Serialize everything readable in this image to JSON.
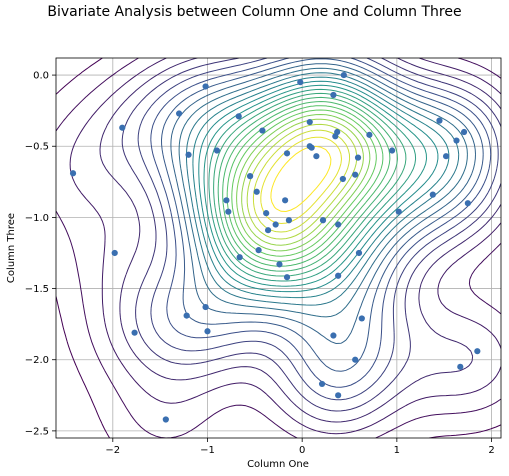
{
  "chart_data": {
    "type": "scatter",
    "title": "Bivariate Analysis between Column One and Column Three",
    "xlabel": "Column One",
    "ylabel": "Column Three",
    "xlim": [
      -2.6,
      2.1
    ],
    "ylim": [
      -2.55,
      0.12
    ],
    "grid": true,
    "overlay": "kde-contour",
    "x_ticks": [
      -2,
      -1,
      0,
      1,
      2
    ],
    "y_ticks": [
      0.0,
      -0.5,
      -1.0,
      -1.5,
      -2.0,
      -2.5
    ],
    "x_tick_labels": [
      "−2",
      "−1",
      "0",
      "1",
      "2"
    ],
    "y_tick_labels": [
      "0.0",
      "−0.5",
      "−1.0",
      "−1.5",
      "−2.0",
      "−2.5"
    ],
    "point_color": "#3a6fb0",
    "contour_colormap": [
      "#440154",
      "#3b528b",
      "#21918c",
      "#5ec962",
      "#fde725"
    ],
    "points": [
      {
        "x": -2.42,
        "y": -0.69
      },
      {
        "x": -1.98,
        "y": -1.25
      },
      {
        "x": -1.9,
        "y": -0.37
      },
      {
        "x": -1.77,
        "y": -1.81
      },
      {
        "x": -1.44,
        "y": -2.42
      },
      {
        "x": -1.3,
        "y": -0.27
      },
      {
        "x": -1.22,
        "y": -1.69
      },
      {
        "x": -1.2,
        "y": -0.56
      },
      {
        "x": -1.02,
        "y": -0.08
      },
      {
        "x": -1.02,
        "y": -1.63
      },
      {
        "x": -1.0,
        "y": -1.8
      },
      {
        "x": -0.9,
        "y": -0.53
      },
      {
        "x": -0.8,
        "y": -0.88
      },
      {
        "x": -0.78,
        "y": -0.96
      },
      {
        "x": -0.67,
        "y": -0.29
      },
      {
        "x": -0.66,
        "y": -1.28
      },
      {
        "x": -0.55,
        "y": -0.71
      },
      {
        "x": -0.48,
        "y": -0.82
      },
      {
        "x": -0.46,
        "y": -1.23
      },
      {
        "x": -0.42,
        "y": -0.39
      },
      {
        "x": -0.38,
        "y": -0.97
      },
      {
        "x": -0.36,
        "y": -1.09
      },
      {
        "x": -0.28,
        "y": -1.05
      },
      {
        "x": -0.24,
        "y": -1.33
      },
      {
        "x": -0.18,
        "y": -0.88
      },
      {
        "x": -0.16,
        "y": -1.42
      },
      {
        "x": -0.16,
        "y": -0.55
      },
      {
        "x": -0.14,
        "y": -1.02
      },
      {
        "x": -0.02,
        "y": -0.05
      },
      {
        "x": 0.08,
        "y": -0.33
      },
      {
        "x": 0.08,
        "y": -0.5
      },
      {
        "x": 0.1,
        "y": -0.51
      },
      {
        "x": 0.15,
        "y": -0.57
      },
      {
        "x": 0.22,
        "y": -1.02
      },
      {
        "x": 0.21,
        "y": -2.17
      },
      {
        "x": 0.33,
        "y": -0.14
      },
      {
        "x": 0.33,
        "y": -1.83
      },
      {
        "x": 0.35,
        "y": -0.43
      },
      {
        "x": 0.37,
        "y": -0.4
      },
      {
        "x": 0.38,
        "y": -1.05
      },
      {
        "x": 0.38,
        "y": -1.41
      },
      {
        "x": 0.38,
        "y": -2.25
      },
      {
        "x": 0.43,
        "y": -0.73
      },
      {
        "x": 0.44,
        "y": 0.0
      },
      {
        "x": 0.56,
        "y": -0.7
      },
      {
        "x": 0.56,
        "y": -2.0
      },
      {
        "x": 0.59,
        "y": -0.58
      },
      {
        "x": 0.6,
        "y": -1.25
      },
      {
        "x": 0.63,
        "y": -1.71
      },
      {
        "x": 0.71,
        "y": -0.42
      },
      {
        "x": 0.95,
        "y": -0.53
      },
      {
        "x": 1.02,
        "y": -0.96
      },
      {
        "x": 1.38,
        "y": -0.84
      },
      {
        "x": 1.45,
        "y": -0.32
      },
      {
        "x": 1.52,
        "y": -0.57
      },
      {
        "x": 1.63,
        "y": -0.46
      },
      {
        "x": 1.67,
        "y": -2.05
      },
      {
        "x": 1.71,
        "y": -0.4
      },
      {
        "x": 1.75,
        "y": -0.9
      },
      {
        "x": 1.85,
        "y": -1.94
      }
    ]
  }
}
